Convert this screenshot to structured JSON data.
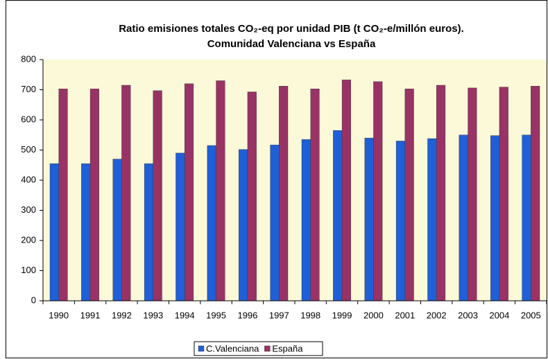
{
  "chart_data": {
    "type": "bar",
    "title": [
      "Ratio emisiones totales CO₂-eq por unidad PIB (t CO₂-e/millón euros).",
      "Comunidad Valenciana vs España"
    ],
    "categories": [
      "1990",
      "1991",
      "1992",
      "1993",
      "1994",
      "1995",
      "1996",
      "1997",
      "1998",
      "1999",
      "2000",
      "2001",
      "2002",
      "2003",
      "2004",
      "2005"
    ],
    "series": [
      {
        "name": "C.Valenciana",
        "color": "#1f5fd8",
        "values": [
          455,
          455,
          470,
          455,
          490,
          515,
          502,
          517,
          535,
          565,
          540,
          530,
          538,
          550,
          548,
          550
        ]
      },
      {
        "name": "España",
        "color": "#993366",
        "values": [
          703,
          703,
          715,
          697,
          720,
          730,
          693,
          712,
          703,
          733,
          727,
          703,
          715,
          706,
          709,
          712
        ]
      }
    ],
    "ylim": [
      0,
      800
    ],
    "yticks": [
      0,
      100,
      200,
      300,
      400,
      500,
      600,
      700,
      800
    ],
    "grid": false,
    "legend": "bottom"
  }
}
